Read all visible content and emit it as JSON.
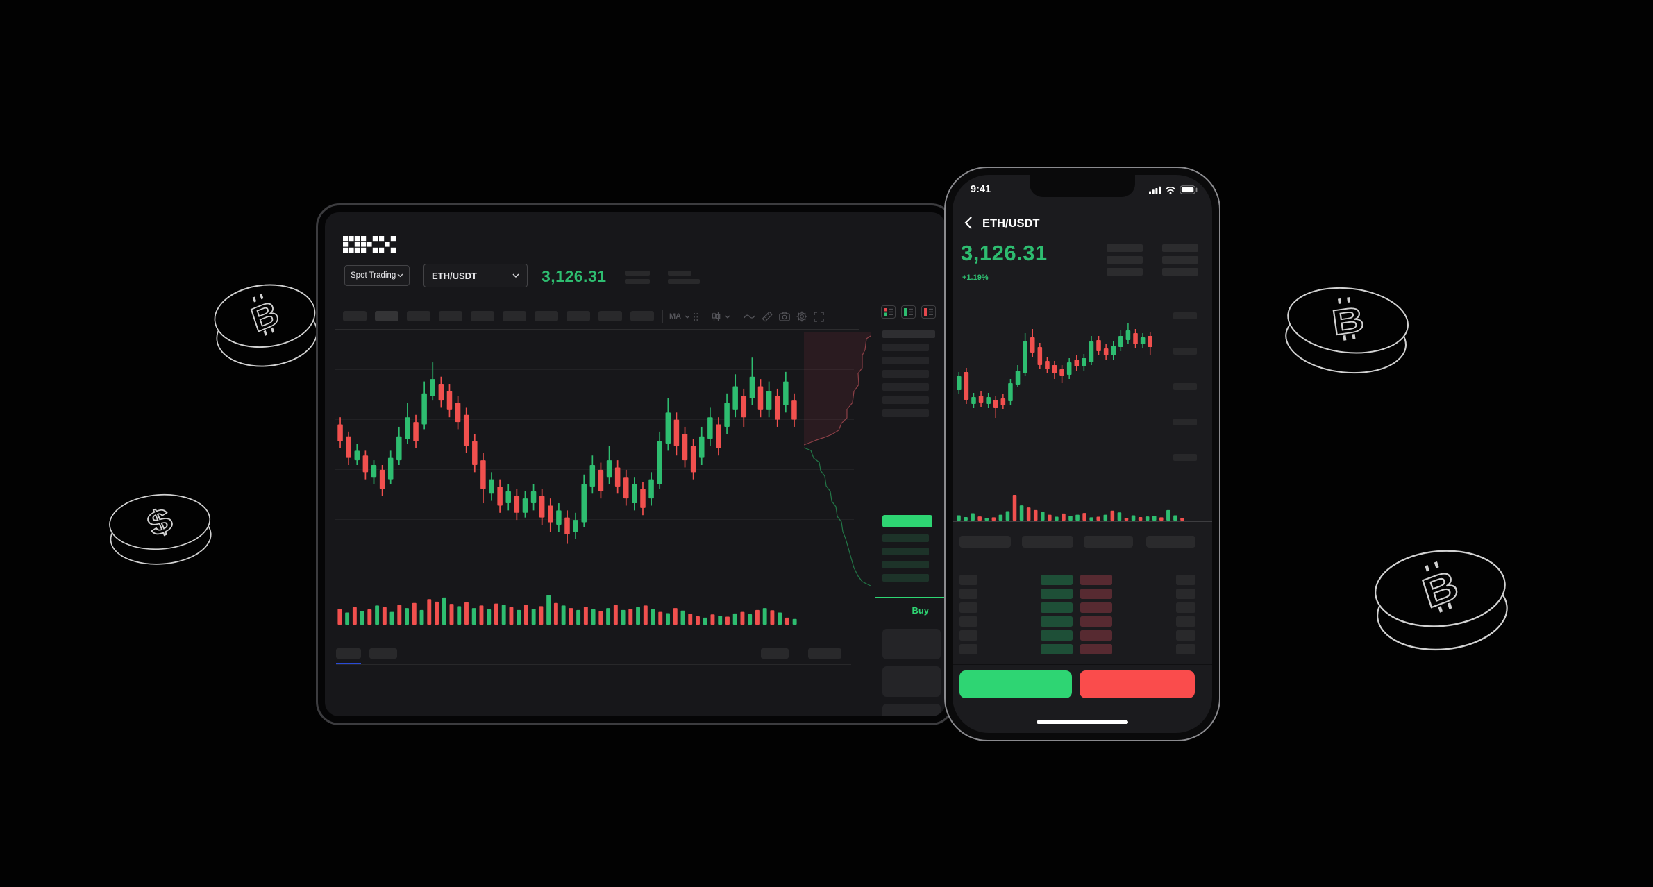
{
  "colors": {
    "accent_green": "#2ed573",
    "candle_green": "#2ebd70",
    "candle_red": "#f1504e",
    "button_red": "#fa4c4c",
    "tab_underline_blue": "#2a4bd7"
  },
  "desktop": {
    "logo": "OKX",
    "market_dropdown": {
      "value": "Spot Trading",
      "icon": "chevron-down-icon"
    },
    "pair_dropdown": {
      "value": "ETH/USDT",
      "icon": "chevron-down-icon"
    },
    "last_price": "3,126.31",
    "toolbar": {
      "placeholder_count": 10,
      "indicator_label": "MA",
      "icons": [
        "candle-style-icon",
        "wave-tool-icon",
        "ruler-icon",
        "camera-icon",
        "settings-icon",
        "fullscreen-icon"
      ]
    },
    "order_book": {
      "view_toggle_icons": [
        "book-both-icon",
        "book-buy-icon",
        "book-sell-icon"
      ],
      "ask_row_count": 7,
      "bid_row_count": 4,
      "buy_tab": "Buy",
      "form_field_count": 3,
      "slider_dot_position": "70%"
    },
    "bottom_tabs_placeholder_count": 4
  },
  "phone": {
    "status_bar": {
      "time": "9:41",
      "icons": [
        "signal-icon",
        "wifi-icon",
        "battery-icon"
      ]
    },
    "header": {
      "back_icon": "chevron-left-icon",
      "title": "ETH/USDT"
    },
    "last_price": "3,126.31",
    "change_percent": "+1.19%",
    "summary_rows_per_column": 3,
    "axis_placeholder_count": 5,
    "tab_placeholder_count": 4,
    "order_book": {
      "row_count": 6
    }
  },
  "decorations": {
    "coins": [
      "bitcoin-coin",
      "dollar-coin",
      "bitcoin-coin",
      "bitcoin-coin"
    ]
  },
  "charts": {
    "desktop_candles": [
      [
        "r",
        33,
        40,
        30,
        43
      ],
      [
        "r",
        38,
        47,
        36,
        50
      ],
      [
        "g",
        44,
        48,
        41,
        50
      ],
      [
        "r",
        46,
        53,
        44,
        56
      ],
      [
        "g",
        50,
        55,
        48,
        58
      ],
      [
        "r",
        52,
        60,
        50,
        63
      ],
      [
        "g",
        47,
        56,
        44,
        58
      ],
      [
        "g",
        38,
        48,
        34,
        50
      ],
      [
        "g",
        30,
        39,
        24,
        41
      ],
      [
        "r",
        32,
        40,
        29,
        43
      ],
      [
        "g",
        20,
        33,
        15,
        35
      ],
      [
        "g",
        14,
        21,
        7,
        23
      ],
      [
        "r",
        16,
        23,
        13,
        26
      ],
      [
        "r",
        19,
        27,
        16,
        30
      ],
      [
        "r",
        24,
        32,
        21,
        35
      ],
      [
        "r",
        29,
        42,
        26,
        45
      ],
      [
        "r",
        40,
        50,
        37,
        53
      ],
      [
        "r",
        48,
        60,
        45,
        66
      ],
      [
        "g",
        56,
        62,
        53,
        65
      ],
      [
        "r",
        59,
        67,
        56,
        70
      ],
      [
        "g",
        61,
        66,
        58,
        69
      ],
      [
        "r",
        63,
        70,
        60,
        73
      ],
      [
        "g",
        64,
        70,
        61,
        72
      ],
      [
        "g",
        61,
        66,
        58,
        69
      ],
      [
        "r",
        63,
        72,
        60,
        75
      ],
      [
        "r",
        67,
        74,
        64,
        78
      ],
      [
        "g",
        69,
        75,
        66,
        78
      ],
      [
        "r",
        72,
        79,
        69,
        83
      ],
      [
        "g",
        73,
        78,
        70,
        81
      ],
      [
        "g",
        58,
        74,
        54,
        76
      ],
      [
        "g",
        50,
        59,
        46,
        62
      ],
      [
        "r",
        52,
        61,
        49,
        64
      ],
      [
        "g",
        48,
        55,
        42,
        58
      ],
      [
        "r",
        51,
        59,
        48,
        62
      ],
      [
        "r",
        55,
        64,
        52,
        67
      ],
      [
        "g",
        58,
        66,
        55,
        69
      ],
      [
        "r",
        60,
        68,
        57,
        71
      ],
      [
        "g",
        56,
        64,
        53,
        67
      ],
      [
        "g",
        40,
        58,
        36,
        60
      ],
      [
        "g",
        28,
        41,
        22,
        44
      ],
      [
        "r",
        31,
        42,
        28,
        46
      ],
      [
        "r",
        37,
        48,
        34,
        51
      ],
      [
        "r",
        42,
        53,
        39,
        56
      ],
      [
        "g",
        38,
        47,
        34,
        50
      ],
      [
        "g",
        30,
        39,
        26,
        42
      ],
      [
        "r",
        33,
        43,
        30,
        46
      ],
      [
        "g",
        24,
        34,
        20,
        37
      ],
      [
        "g",
        17,
        27,
        12,
        30
      ],
      [
        "r",
        21,
        30,
        18,
        34
      ],
      [
        "g",
        13,
        22,
        5,
        25
      ],
      [
        "r",
        17,
        27,
        14,
        30
      ],
      [
        "g",
        19,
        27,
        15,
        30
      ],
      [
        "r",
        21,
        31,
        18,
        34
      ],
      [
        "g",
        15,
        25,
        11,
        28
      ],
      [
        "r",
        23,
        31,
        20,
        34
      ]
    ],
    "desktop_volume": [
      [
        "r",
        50
      ],
      [
        "g",
        38
      ],
      [
        "r",
        55
      ],
      [
        "g",
        42
      ],
      [
        "r",
        48
      ],
      [
        "g",
        60
      ],
      [
        "r",
        55
      ],
      [
        "g",
        40
      ],
      [
        "r",
        62
      ],
      [
        "g",
        52
      ],
      [
        "r",
        68
      ],
      [
        "g",
        46
      ],
      [
        "r",
        80
      ],
      [
        "r",
        72
      ],
      [
        "g",
        85
      ],
      [
        "r",
        65
      ],
      [
        "g",
        58
      ],
      [
        "r",
        70
      ],
      [
        "g",
        52
      ],
      [
        "r",
        60
      ],
      [
        "g",
        48
      ],
      [
        "r",
        66
      ],
      [
        "g",
        62
      ],
      [
        "r",
        55
      ],
      [
        "g",
        46
      ],
      [
        "r",
        63
      ],
      [
        "g",
        50
      ],
      [
        "r",
        58
      ],
      [
        "g",
        92
      ],
      [
        "r",
        68
      ],
      [
        "g",
        60
      ],
      [
        "r",
        52
      ],
      [
        "g",
        46
      ],
      [
        "r",
        56
      ],
      [
        "g",
        48
      ],
      [
        "r",
        42
      ],
      [
        "g",
        52
      ],
      [
        "r",
        62
      ],
      [
        "g",
        46
      ],
      [
        "r",
        50
      ],
      [
        "g",
        55
      ],
      [
        "r",
        60
      ],
      [
        "g",
        48
      ],
      [
        "r",
        40
      ],
      [
        "g",
        36
      ],
      [
        "r",
        52
      ],
      [
        "g",
        44
      ],
      [
        "r",
        34
      ],
      [
        "r",
        26
      ],
      [
        "g",
        22
      ],
      [
        "r",
        32
      ],
      [
        "g",
        28
      ],
      [
        "r",
        25
      ],
      [
        "g",
        35
      ],
      [
        "r",
        40
      ],
      [
        "g",
        33
      ],
      [
        "r",
        46
      ],
      [
        "g",
        52
      ],
      [
        "r",
        45
      ],
      [
        "g",
        38
      ],
      [
        "r",
        22
      ],
      [
        "g",
        18
      ]
    ],
    "phone_candles": [
      [
        "g",
        45,
        55,
        42,
        58
      ],
      [
        "r",
        42,
        62,
        39,
        65
      ],
      [
        "g",
        60,
        65,
        57,
        68
      ],
      [
        "r",
        59,
        64,
        56,
        67
      ],
      [
        "g",
        60,
        65,
        57,
        68
      ],
      [
        "r",
        62,
        68,
        59,
        75
      ],
      [
        "r",
        61,
        66,
        58,
        69
      ],
      [
        "g",
        50,
        63,
        47,
        66
      ],
      [
        "g",
        41,
        51,
        37,
        53
      ],
      [
        "g",
        20,
        43,
        14,
        45
      ],
      [
        "r",
        17,
        28,
        11,
        31
      ],
      [
        "r",
        24,
        37,
        21,
        40
      ],
      [
        "r",
        34,
        40,
        31,
        43
      ],
      [
        "r",
        37,
        43,
        34,
        47
      ],
      [
        "r",
        40,
        45,
        37,
        50
      ],
      [
        "g",
        35,
        44,
        32,
        47
      ],
      [
        "r",
        33,
        38,
        30,
        41
      ],
      [
        "g",
        32,
        38,
        29,
        41
      ],
      [
        "g",
        20,
        35,
        16,
        37
      ],
      [
        "r",
        19,
        27,
        16,
        30
      ],
      [
        "r",
        25,
        30,
        22,
        33
      ],
      [
        "g",
        23,
        30,
        20,
        33
      ],
      [
        "g",
        16,
        24,
        12,
        27
      ],
      [
        "g",
        12,
        19,
        7,
        22
      ],
      [
        "r",
        14,
        22,
        11,
        25
      ],
      [
        "g",
        17,
        22,
        14,
        25
      ],
      [
        "r",
        16,
        24,
        13,
        30
      ]
    ],
    "phone_volume": [
      [
        "g",
        18
      ],
      [
        "g",
        12
      ],
      [
        "g",
        25
      ],
      [
        "r",
        14
      ],
      [
        "g",
        9
      ],
      [
        "r",
        11
      ],
      [
        "g",
        20
      ],
      [
        "g",
        32
      ],
      [
        "r",
        88
      ],
      [
        "g",
        52
      ],
      [
        "r",
        45
      ],
      [
        "r",
        36
      ],
      [
        "g",
        30
      ],
      [
        "r",
        20
      ],
      [
        "g",
        13
      ],
      [
        "r",
        24
      ],
      [
        "g",
        16
      ],
      [
        "g",
        20
      ],
      [
        "r",
        26
      ],
      [
        "g",
        11
      ],
      [
        "r",
        13
      ],
      [
        "g",
        20
      ],
      [
        "r",
        34
      ],
      [
        "g",
        28
      ],
      [
        "r",
        9
      ],
      [
        "g",
        18
      ],
      [
        "r",
        12
      ],
      [
        "g",
        14
      ],
      [
        "g",
        16
      ],
      [
        "r",
        11
      ],
      [
        "g",
        36
      ],
      [
        "g",
        18
      ],
      [
        "r",
        9
      ]
    ]
  }
}
